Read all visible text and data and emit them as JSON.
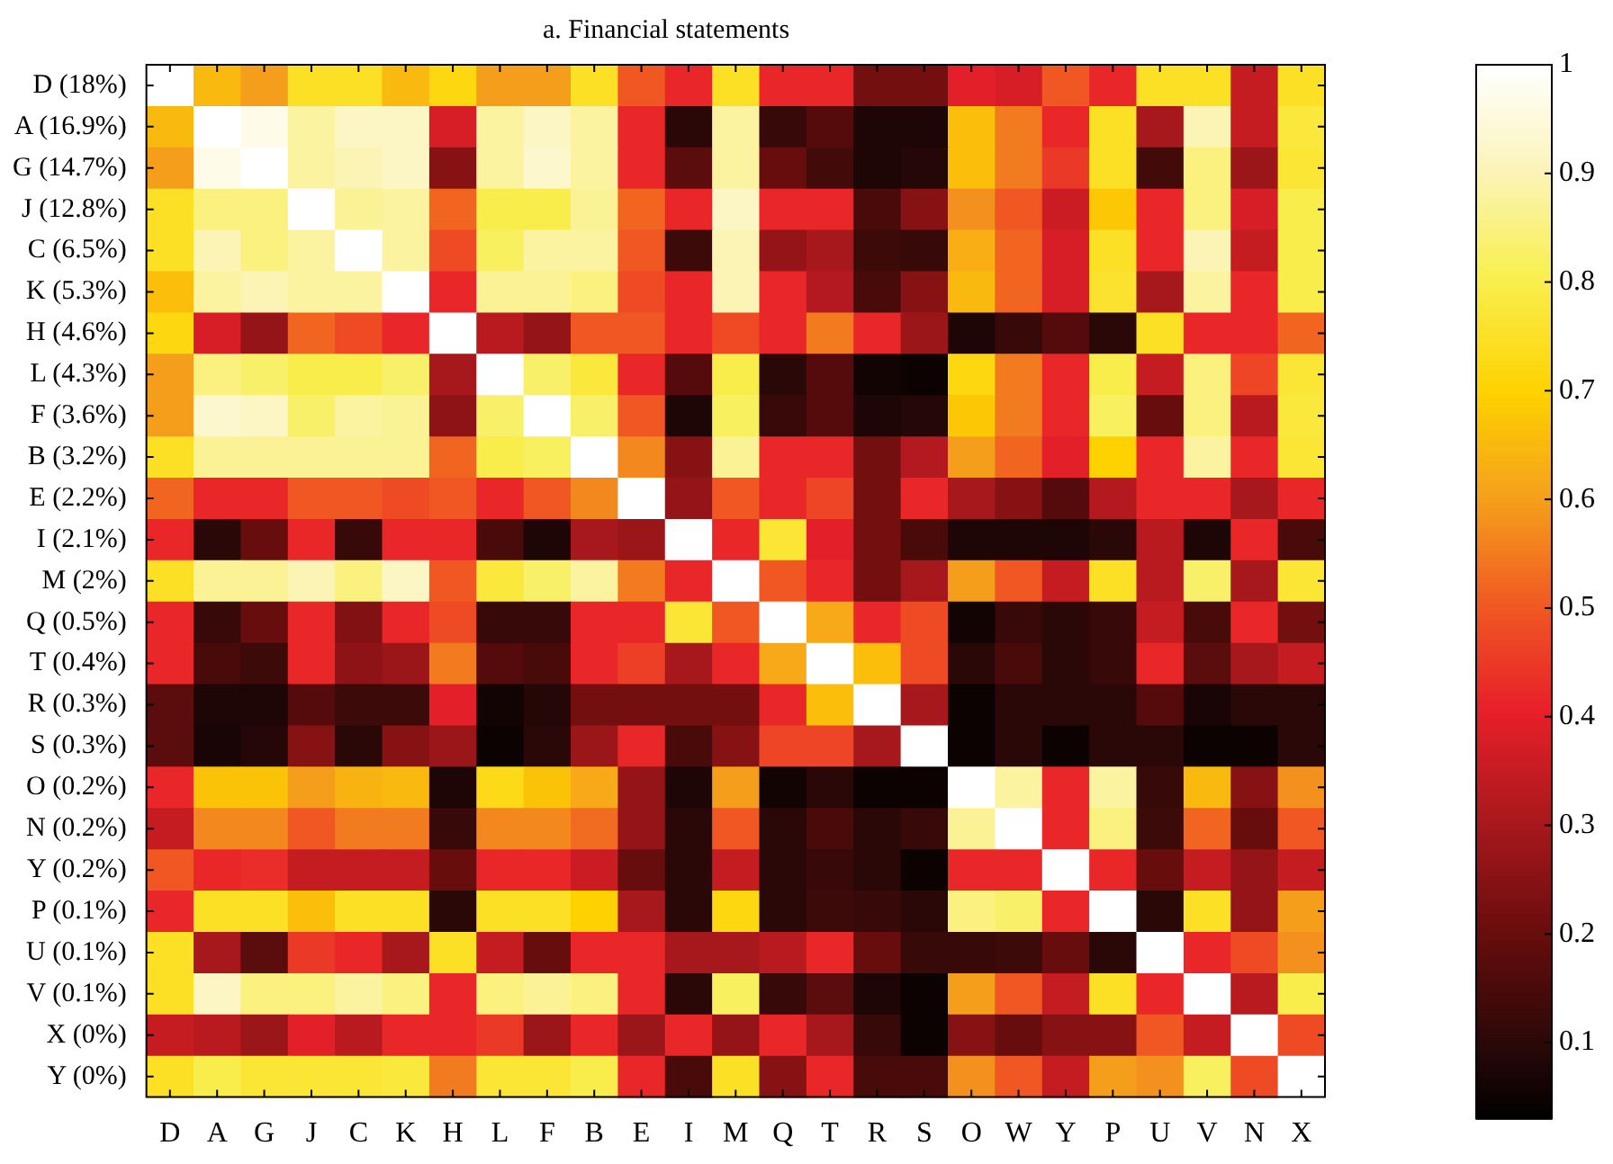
{
  "chart_data": {
    "type": "heatmap",
    "title": "a. Financial statements",
    "categories": [
      "D",
      "A",
      "G",
      "J",
      "C",
      "K",
      "H",
      "L",
      "F",
      "B",
      "E",
      "I",
      "M",
      "Q",
      "T",
      "R",
      "S",
      "O",
      "W",
      "Y",
      "P",
      "U",
      "V",
      "N",
      "X"
    ],
    "y_categories": [
      "D (18%)",
      "A (16.9%)",
      "G (14.7%)",
      "J (12.8%)",
      "C (6.5%)",
      "K (5.3%)",
      "H (4.6%)",
      "L (4.3%)",
      "F (3.6%)",
      "B (3.2%)",
      "E (2.2%)",
      "I (2.1%)",
      "M (2%)",
      "Q (0.5%)",
      "T (0.4%)",
      "R (0.3%)",
      "S (0.3%)",
      "O (0.2%)",
      "N (0.2%)",
      "Y (0.2%)",
      "P (0.1%)",
      "U (0.1%)",
      "V (0.1%)",
      "X (0%)",
      "Y (0%)"
    ],
    "cells": [
      [
        1,
        0.65,
        0.6,
        0.75,
        0.75,
        0.65,
        0.72,
        0.6,
        0.6,
        0.75,
        0.5,
        0.42,
        0.75,
        0.42,
        0.42,
        0.22,
        0.22,
        0.4,
        0.38,
        0.5,
        0.42,
        0.75,
        0.75,
        0.35,
        0.75
      ],
      [
        0.65,
        1,
        0.97,
        0.88,
        0.92,
        0.92,
        0.38,
        0.88,
        0.92,
        0.88,
        0.42,
        0.1,
        0.88,
        0.12,
        0.17,
        0.08,
        0.08,
        0.66,
        0.55,
        0.42,
        0.75,
        0.3,
        0.9,
        0.35,
        0.78
      ],
      [
        0.6,
        0.97,
        1,
        0.88,
        0.9,
        0.92,
        0.25,
        0.88,
        0.93,
        0.88,
        0.42,
        0.18,
        0.88,
        0.2,
        0.14,
        0.08,
        0.09,
        0.66,
        0.55,
        0.45,
        0.75,
        0.14,
        0.85,
        0.28,
        0.77
      ],
      [
        0.75,
        0.85,
        0.85,
        1,
        0.87,
        0.88,
        0.52,
        0.8,
        0.8,
        0.87,
        0.52,
        0.42,
        0.92,
        0.42,
        0.42,
        0.15,
        0.25,
        0.58,
        0.5,
        0.36,
        0.68,
        0.42,
        0.85,
        0.38,
        0.8
      ],
      [
        0.75,
        0.9,
        0.85,
        0.88,
        1,
        0.88,
        0.48,
        0.82,
        0.88,
        0.88,
        0.5,
        0.13,
        0.9,
        0.27,
        0.3,
        0.13,
        0.12,
        0.63,
        0.52,
        0.38,
        0.75,
        0.42,
        0.9,
        0.35,
        0.8
      ],
      [
        0.66,
        0.88,
        0.9,
        0.88,
        0.88,
        1,
        0.42,
        0.87,
        0.87,
        0.85,
        0.48,
        0.42,
        0.9,
        0.42,
        0.32,
        0.15,
        0.25,
        0.65,
        0.52,
        0.38,
        0.76,
        0.3,
        0.88,
        0.42,
        0.8
      ],
      [
        0.72,
        0.38,
        0.27,
        0.52,
        0.48,
        0.42,
        1,
        0.33,
        0.27,
        0.5,
        0.5,
        0.42,
        0.48,
        0.42,
        0.55,
        0.42,
        0.28,
        0.08,
        0.12,
        0.17,
        0.1,
        0.75,
        0.42,
        0.42,
        0.52
      ],
      [
        0.6,
        0.85,
        0.83,
        0.8,
        0.8,
        0.83,
        0.3,
        1,
        0.83,
        0.78,
        0.42,
        0.17,
        0.8,
        0.1,
        0.17,
        0.06,
        0.05,
        0.72,
        0.55,
        0.42,
        0.8,
        0.35,
        0.85,
        0.47,
        0.77
      ],
      [
        0.6,
        0.93,
        0.92,
        0.83,
        0.88,
        0.87,
        0.26,
        0.83,
        1,
        0.83,
        0.5,
        0.08,
        0.82,
        0.12,
        0.17,
        0.08,
        0.09,
        0.68,
        0.55,
        0.42,
        0.82,
        0.2,
        0.85,
        0.33,
        0.78
      ],
      [
        0.75,
        0.87,
        0.87,
        0.87,
        0.87,
        0.87,
        0.52,
        0.8,
        0.82,
        1,
        0.57,
        0.25,
        0.87,
        0.42,
        0.42,
        0.22,
        0.32,
        0.6,
        0.52,
        0.4,
        0.7,
        0.42,
        0.88,
        0.42,
        0.77
      ],
      [
        0.52,
        0.42,
        0.42,
        0.5,
        0.5,
        0.48,
        0.5,
        0.42,
        0.5,
        0.57,
        1,
        0.27,
        0.5,
        0.42,
        0.47,
        0.22,
        0.42,
        0.3,
        0.25,
        0.17,
        0.32,
        0.42,
        0.42,
        0.3,
        0.42
      ],
      [
        0.42,
        0.1,
        0.2,
        0.42,
        0.12,
        0.42,
        0.42,
        0.15,
        0.08,
        0.3,
        0.28,
        1,
        0.42,
        0.77,
        0.4,
        0.22,
        0.15,
        0.08,
        0.08,
        0.08,
        0.1,
        0.33,
        0.08,
        0.42,
        0.15
      ],
      [
        0.75,
        0.87,
        0.87,
        0.9,
        0.85,
        0.92,
        0.5,
        0.78,
        0.83,
        0.88,
        0.55,
        0.42,
        1,
        0.5,
        0.42,
        0.22,
        0.3,
        0.6,
        0.5,
        0.35,
        0.75,
        0.33,
        0.83,
        0.3,
        0.77
      ],
      [
        0.42,
        0.12,
        0.2,
        0.42,
        0.24,
        0.42,
        0.48,
        0.12,
        0.12,
        0.42,
        0.42,
        0.77,
        0.5,
        1,
        0.62,
        0.42,
        0.48,
        0.06,
        0.12,
        0.1,
        0.12,
        0.35,
        0.15,
        0.42,
        0.22
      ],
      [
        0.42,
        0.15,
        0.13,
        0.42,
        0.26,
        0.28,
        0.55,
        0.17,
        0.15,
        0.42,
        0.46,
        0.3,
        0.42,
        0.62,
        1,
        0.66,
        0.48,
        0.1,
        0.15,
        0.1,
        0.12,
        0.42,
        0.18,
        0.3,
        0.35
      ],
      [
        0.18,
        0.08,
        0.08,
        0.17,
        0.13,
        0.13,
        0.4,
        0.06,
        0.09,
        0.22,
        0.22,
        0.22,
        0.22,
        0.42,
        0.66,
        1,
        0.3,
        0.05,
        0.1,
        0.1,
        0.1,
        0.17,
        0.07,
        0.1,
        0.1
      ],
      [
        0.18,
        0.07,
        0.09,
        0.25,
        0.1,
        0.25,
        0.28,
        0.05,
        0.1,
        0.28,
        0.42,
        0.15,
        0.25,
        0.47,
        0.47,
        0.3,
        1,
        0.05,
        0.1,
        0.05,
        0.1,
        0.1,
        0.05,
        0.05,
        0.1
      ],
      [
        0.42,
        0.67,
        0.67,
        0.6,
        0.64,
        0.65,
        0.08,
        0.73,
        0.67,
        0.62,
        0.27,
        0.08,
        0.6,
        0.06,
        0.1,
        0.05,
        0.05,
        1,
        0.88,
        0.42,
        0.88,
        0.12,
        0.65,
        0.25,
        0.58
      ],
      [
        0.35,
        0.57,
        0.57,
        0.5,
        0.55,
        0.55,
        0.12,
        0.57,
        0.57,
        0.53,
        0.27,
        0.1,
        0.5,
        0.1,
        0.15,
        0.1,
        0.12,
        0.87,
        1,
        0.42,
        0.85,
        0.13,
        0.52,
        0.2,
        0.5
      ],
      [
        0.5,
        0.42,
        0.43,
        0.35,
        0.35,
        0.35,
        0.2,
        0.42,
        0.42,
        0.36,
        0.2,
        0.1,
        0.35,
        0.1,
        0.12,
        0.1,
        0.05,
        0.42,
        0.42,
        1,
        0.42,
        0.2,
        0.35,
        0.27,
        0.35
      ],
      [
        0.42,
        0.75,
        0.75,
        0.66,
        0.75,
        0.75,
        0.1,
        0.75,
        0.75,
        0.7,
        0.3,
        0.1,
        0.72,
        0.1,
        0.13,
        0.12,
        0.1,
        0.85,
        0.83,
        0.42,
        1,
        0.1,
        0.75,
        0.27,
        0.6
      ],
      [
        0.75,
        0.3,
        0.18,
        0.45,
        0.42,
        0.3,
        0.75,
        0.35,
        0.2,
        0.42,
        0.42,
        0.3,
        0.3,
        0.33,
        0.42,
        0.2,
        0.12,
        0.12,
        0.13,
        0.2,
        0.1,
        1,
        0.42,
        0.48,
        0.58
      ],
      [
        0.75,
        0.92,
        0.85,
        0.85,
        0.88,
        0.85,
        0.42,
        0.85,
        0.87,
        0.85,
        0.42,
        0.1,
        0.82,
        0.12,
        0.18,
        0.08,
        0.05,
        0.6,
        0.5,
        0.35,
        0.75,
        0.42,
        1,
        0.33,
        0.8
      ],
      [
        0.35,
        0.33,
        0.28,
        0.4,
        0.33,
        0.42,
        0.42,
        0.45,
        0.28,
        0.42,
        0.28,
        0.42,
        0.27,
        0.42,
        0.3,
        0.12,
        0.05,
        0.25,
        0.2,
        0.25,
        0.25,
        0.5,
        0.35,
        1,
        0.48
      ],
      [
        0.75,
        0.8,
        0.77,
        0.77,
        0.77,
        0.78,
        0.55,
        0.77,
        0.77,
        0.8,
        0.42,
        0.15,
        0.75,
        0.25,
        0.42,
        0.15,
        0.15,
        0.58,
        0.5,
        0.35,
        0.6,
        0.58,
        0.82,
        0.48,
        1
      ]
    ],
    "clim": [
      0.03,
      1
    ],
    "cticks": [
      0.1,
      0.2,
      0.3,
      0.4,
      0.5,
      0.6,
      0.7,
      0.8,
      0.9,
      1
    ]
  }
}
